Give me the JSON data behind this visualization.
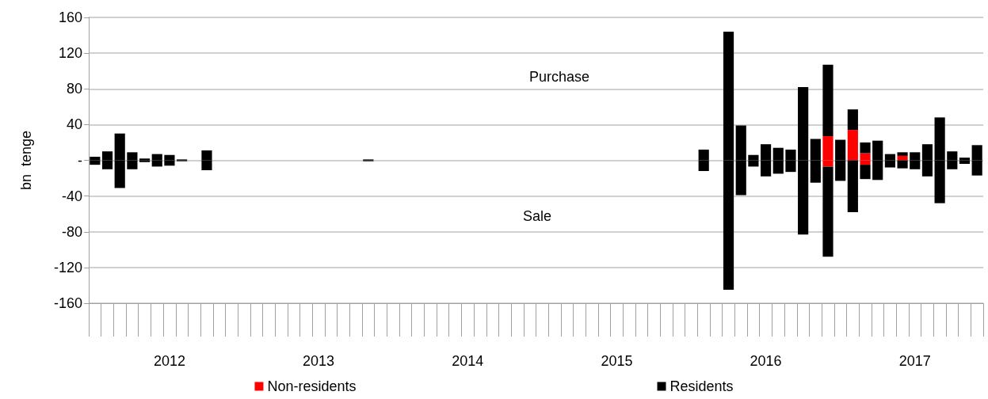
{
  "chart_data": {
    "type": "bar",
    "stacked": true,
    "ylabel": "bn  tenge",
    "annotations": [
      "Purchase",
      "Sale"
    ],
    "categories": [
      null,
      null,
      null,
      null,
      null,
      null,
      "2012",
      null,
      null,
      null,
      null,
      null,
      null,
      null,
      null,
      null,
      null,
      null,
      "2013",
      null,
      null,
      null,
      null,
      null,
      null,
      null,
      null,
      null,
      null,
      null,
      "2014",
      null,
      null,
      null,
      null,
      null,
      null,
      null,
      null,
      null,
      null,
      null,
      "2015",
      null,
      null,
      null,
      null,
      null,
      null,
      null,
      null,
      null,
      null,
      null,
      "2016",
      null,
      null,
      null,
      null,
      null,
      null,
      null,
      null,
      null,
      null,
      null,
      "2017",
      null,
      null,
      null,
      null,
      null
    ],
    "series": [
      {
        "name": "Non-residents",
        "color": "#ff0000",
        "values": [
          null,
          null,
          null,
          null,
          null,
          null,
          null,
          null,
          null,
          null,
          null,
          null,
          null,
          null,
          null,
          null,
          null,
          null,
          null,
          null,
          null,
          null,
          null,
          null,
          null,
          null,
          null,
          null,
          null,
          null,
          null,
          null,
          null,
          null,
          null,
          null,
          null,
          null,
          null,
          null,
          null,
          null,
          null,
          null,
          null,
          null,
          null,
          null,
          null,
          null,
          null,
          null,
          null,
          null,
          null,
          null,
          null,
          null,
          null,
          27,
          null,
          34,
          8,
          null,
          null,
          5,
          null,
          null,
          null,
          null,
          null,
          null
        ]
      },
      {
        "name": "Residents",
        "color": "#000000",
        "values": [
          4,
          10,
          30,
          9,
          2,
          7,
          6,
          1,
          null,
          11,
          null,
          null,
          null,
          null,
          null,
          null,
          null,
          null,
          null,
          null,
          null,
          null,
          1,
          null,
          null,
          null,
          null,
          null,
          null,
          null,
          null,
          null,
          null,
          null,
          null,
          null,
          null,
          null,
          null,
          null,
          null,
          null,
          null,
          null,
          null,
          null,
          null,
          null,
          null,
          12,
          null,
          144,
          39,
          6,
          18,
          14,
          12,
          82,
          24,
          80,
          23,
          23,
          12,
          22,
          7,
          4,
          9,
          18,
          48,
          10,
          3,
          17
        ]
      },
      {
        "color": "#ff0000",
        "values": [
          null,
          null,
          null,
          null,
          null,
          null,
          null,
          null,
          null,
          null,
          null,
          null,
          null,
          null,
          null,
          null,
          null,
          null,
          null,
          null,
          null,
          null,
          null,
          null,
          null,
          null,
          null,
          null,
          null,
          null,
          null,
          null,
          null,
          null,
          null,
          null,
          null,
          null,
          null,
          null,
          null,
          null,
          null,
          null,
          null,
          null,
          null,
          null,
          null,
          null,
          null,
          null,
          null,
          null,
          null,
          null,
          null,
          null,
          null,
          -7,
          null,
          null,
          -5,
          null,
          null,
          null,
          null,
          null,
          null,
          null,
          null,
          null
        ]
      },
      {
        "color": "#000000",
        "values": [
          -5,
          -10,
          -31,
          -10,
          -2,
          -7,
          -6,
          -1,
          null,
          -11,
          null,
          null,
          null,
          null,
          null,
          null,
          null,
          null,
          null,
          null,
          null,
          null,
          -1,
          null,
          null,
          null,
          null,
          null,
          null,
          null,
          null,
          null,
          null,
          null,
          null,
          null,
          null,
          null,
          null,
          null,
          null,
          null,
          null,
          null,
          null,
          null,
          null,
          null,
          null,
          -12,
          null,
          -145,
          -39,
          -7,
          -18,
          -15,
          -13,
          -83,
          -25,
          -101,
          -23,
          -58,
          -16,
          -22,
          -8,
          -9,
          -10,
          -18,
          -48,
          -10,
          -4,
          -17
        ]
      }
    ],
    "ylim": [
      -160,
      160
    ],
    "yticks": [
      -160,
      -120,
      -80,
      -40,
      {
        "value": 0,
        "label": "-"
      },
      40,
      80,
      120,
      160
    ],
    "grid": "y",
    "legend": "bottom"
  }
}
